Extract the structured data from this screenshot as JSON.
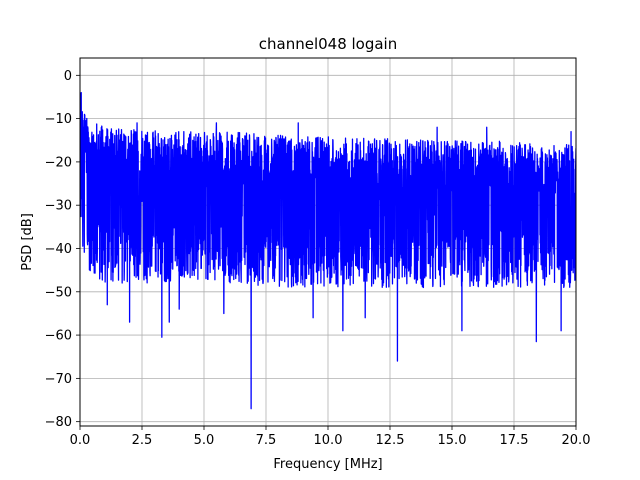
{
  "chart_data": {
    "type": "line",
    "title": "channel048 logain",
    "xlabel": "Frequency [MHz]",
    "ylabel": "PSD [dB]",
    "xlim": [
      0,
      20
    ],
    "ylim": [
      -81,
      4
    ],
    "xticks": [
      0,
      2.5,
      5,
      7.5,
      10,
      12.5,
      15,
      17.5,
      20
    ],
    "xtick_labels": [
      "0.0",
      "2.5",
      "5.0",
      "7.5",
      "10.0",
      "12.5",
      "15.0",
      "17.5",
      "20.0"
    ],
    "yticks": [
      0,
      -10,
      -20,
      -30,
      -40,
      -50,
      -60,
      -70,
      -80
    ],
    "ytick_labels": [
      "0",
      "−10",
      "−20",
      "−30",
      "−40",
      "−50",
      "−60",
      "−70",
      "−80"
    ],
    "grid": true,
    "line_color": "#0000ff",
    "envelope": {
      "x": [
        0,
        0.1,
        0.3,
        0.6,
        1.0,
        2.0,
        4.0,
        6.0,
        8.0,
        10.0,
        12.0,
        14.0,
        16.0,
        18.0,
        20.0
      ],
      "upper": [
        -4,
        -8,
        -10,
        -11,
        -12,
        -12.5,
        -13,
        -13,
        -13.5,
        -14,
        -14.5,
        -15,
        -15,
        -15.5,
        -16
      ],
      "lower": [
        -28,
        -40,
        -45,
        -47,
        -48,
        -48,
        -48,
        -48,
        -49,
        -49,
        -49,
        -49,
        -49,
        -49,
        -49
      ]
    },
    "dips": [
      {
        "x": 1.1,
        "y": -53
      },
      {
        "x": 2.0,
        "y": -57
      },
      {
        "x": 3.3,
        "y": -60.5
      },
      {
        "x": 3.6,
        "y": -57
      },
      {
        "x": 4.0,
        "y": -54
      },
      {
        "x": 5.8,
        "y": -55
      },
      {
        "x": 6.9,
        "y": -77
      },
      {
        "x": 9.4,
        "y": -56
      },
      {
        "x": 10.6,
        "y": -59
      },
      {
        "x": 11.5,
        "y": -56
      },
      {
        "x": 12.8,
        "y": -66
      },
      {
        "x": 15.4,
        "y": -59
      },
      {
        "x": 18.4,
        "y": -61.5
      },
      {
        "x": 19.4,
        "y": -59
      }
    ],
    "peaks": [
      {
        "x": 0.05,
        "y": -4
      },
      {
        "x": 2.3,
        "y": -11
      },
      {
        "x": 5.5,
        "y": -11
      },
      {
        "x": 8.8,
        "y": -11
      },
      {
        "x": 14.4,
        "y": -12
      },
      {
        "x": 16.4,
        "y": -12
      },
      {
        "x": 19.8,
        "y": -13
      }
    ]
  }
}
